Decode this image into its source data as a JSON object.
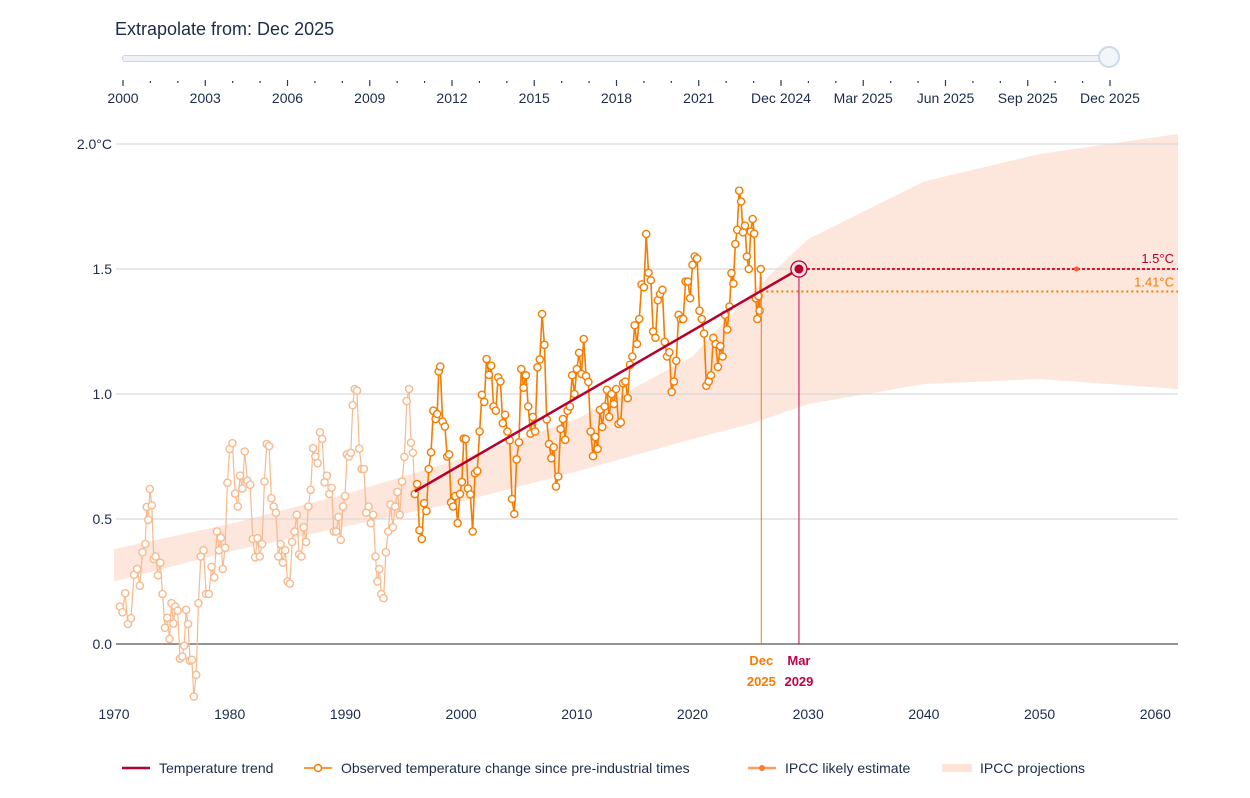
{
  "slider": {
    "title": "Extrapolate from: Dec 2025",
    "selected": "Dec 2025",
    "labels": [
      "2000",
      "2003",
      "2006",
      "2009",
      "2012",
      "2015",
      "2018",
      "2021",
      "Dec 2024",
      "Mar 2025",
      "Jun 2025",
      "Sep 2025",
      "Dec 2025"
    ]
  },
  "colors": {
    "trend": "#b5002e",
    "observed_recent": "#f57c00",
    "observed_past": "#f8b98d",
    "ipcc_estimate": "#ff7a33",
    "ipcc_band": "#fde3d8",
    "marker_dec2025": "#f57c00",
    "marker_mar2029": "#c2004a",
    "text": "#1d2c4c",
    "grid": "#d9d9d9"
  },
  "chart_data": {
    "type": "line",
    "title": "",
    "xlabel": "",
    "ylabel": "",
    "xlim": [
      1970,
      2062
    ],
    "ylim": [
      -0.25,
      2.0
    ],
    "x_ticks": [
      "1970",
      "1980",
      "1990",
      "2000",
      "2010",
      "2020",
      "2030",
      "2040",
      "2050",
      "2060"
    ],
    "y_ticks": [
      {
        "value": 2.0,
        "label": "2.0°C"
      },
      {
        "value": 1.5,
        "label": "1.5"
      },
      {
        "value": 1.0,
        "label": "1.0"
      },
      {
        "value": 0.5,
        "label": "0.5"
      },
      {
        "value": 0.0,
        "label": "0.0"
      }
    ],
    "grid": true,
    "legend_position": "bottom",
    "series": [
      {
        "name": "Temperature trend",
        "kind": "line",
        "x": [
          1996.0,
          2029.2
        ],
        "y": [
          0.61,
          1.5
        ]
      },
      {
        "name": "Observed temperature change since pre-industrial times",
        "kind": "line-markers",
        "highlight_from": 1996.0,
        "yearly_anomalies": [
          {
            "x": 1970.5,
            "y": 0.15
          },
          {
            "x": 1971.2,
            "y": 0.08
          },
          {
            "x": 1972.0,
            "y": 0.3
          },
          {
            "x": 1972.7,
            "y": 0.4
          },
          {
            "x": 1973.1,
            "y": 0.62
          },
          {
            "x": 1973.6,
            "y": 0.35
          },
          {
            "x": 1974.2,
            "y": 0.2
          },
          {
            "x": 1974.8,
            "y": 0.02
          },
          {
            "x": 1975.3,
            "y": 0.15
          },
          {
            "x": 1975.9,
            "y": -0.05
          },
          {
            "x": 1976.4,
            "y": 0.08
          },
          {
            "x": 1976.9,
            "y": -0.21
          },
          {
            "x": 1977.5,
            "y": 0.35
          },
          {
            "x": 1978.2,
            "y": 0.2
          },
          {
            "x": 1978.9,
            "y": 0.45
          },
          {
            "x": 1979.4,
            "y": 0.3
          },
          {
            "x": 1980.0,
            "y": 0.78
          },
          {
            "x": 1980.7,
            "y": 0.55
          },
          {
            "x": 1981.3,
            "y": 0.77
          },
          {
            "x": 1982.0,
            "y": 0.42
          },
          {
            "x": 1982.6,
            "y": 0.35
          },
          {
            "x": 1983.2,
            "y": 0.8
          },
          {
            "x": 1983.8,
            "y": 0.55
          },
          {
            "x": 1984.4,
            "y": 0.4
          },
          {
            "x": 1985.0,
            "y": 0.25
          },
          {
            "x": 1985.6,
            "y": 0.45
          },
          {
            "x": 1986.2,
            "y": 0.35
          },
          {
            "x": 1986.8,
            "y": 0.55
          },
          {
            "x": 1987.4,
            "y": 0.75
          },
          {
            "x": 1988.0,
            "y": 0.82
          },
          {
            "x": 1988.6,
            "y": 0.6
          },
          {
            "x": 1989.2,
            "y": 0.45
          },
          {
            "x": 1989.8,
            "y": 0.55
          },
          {
            "x": 1990.3,
            "y": 0.75
          },
          {
            "x": 1990.8,
            "y": 1.02
          },
          {
            "x": 1991.4,
            "y": 0.7
          },
          {
            "x": 1992.0,
            "y": 0.55
          },
          {
            "x": 1992.6,
            "y": 0.35
          },
          {
            "x": 1993.1,
            "y": 0.2
          },
          {
            "x": 1993.7,
            "y": 0.45
          },
          {
            "x": 1994.3,
            "y": 0.55
          },
          {
            "x": 1994.9,
            "y": 0.65
          },
          {
            "x": 1995.5,
            "y": 1.02
          },
          {
            "x": 1996.0,
            "y": 0.6
          },
          {
            "x": 1996.6,
            "y": 0.42
          },
          {
            "x": 1997.2,
            "y": 0.7
          },
          {
            "x": 1997.8,
            "y": 0.9
          },
          {
            "x": 1998.2,
            "y": 1.11
          },
          {
            "x": 1998.8,
            "y": 0.75
          },
          {
            "x": 1999.3,
            "y": 0.55
          },
          {
            "x": 1999.9,
            "y": 0.6
          },
          {
            "x": 2000.4,
            "y": 0.82
          },
          {
            "x": 2001.0,
            "y": 0.45
          },
          {
            "x": 2001.6,
            "y": 0.85
          },
          {
            "x": 2002.2,
            "y": 1.14
          },
          {
            "x": 2002.8,
            "y": 0.95
          },
          {
            "x": 2003.4,
            "y": 1.05
          },
          {
            "x": 2004.0,
            "y": 0.85
          },
          {
            "x": 2004.6,
            "y": 0.52
          },
          {
            "x": 2005.2,
            "y": 1.1
          },
          {
            "x": 2005.8,
            "y": 0.95
          },
          {
            "x": 2006.4,
            "y": 0.85
          },
          {
            "x": 2007.0,
            "y": 1.32
          },
          {
            "x": 2007.6,
            "y": 0.8
          },
          {
            "x": 2008.2,
            "y": 0.63
          },
          {
            "x": 2008.8,
            "y": 0.9
          },
          {
            "x": 2009.4,
            "y": 0.95
          },
          {
            "x": 2010.0,
            "y": 1.1
          },
          {
            "x": 2010.6,
            "y": 1.22
          },
          {
            "x": 2011.2,
            "y": 0.85
          },
          {
            "x": 2011.8,
            "y": 0.78
          },
          {
            "x": 2012.4,
            "y": 0.95
          },
          {
            "x": 2013.0,
            "y": 1.0
          },
          {
            "x": 2013.6,
            "y": 0.88
          },
          {
            "x": 2014.2,
            "y": 1.05
          },
          {
            "x": 2014.8,
            "y": 1.15
          },
          {
            "x": 2015.4,
            "y": 1.3
          },
          {
            "x": 2016.0,
            "y": 1.64
          },
          {
            "x": 2016.6,
            "y": 1.25
          },
          {
            "x": 2017.2,
            "y": 1.4
          },
          {
            "x": 2017.8,
            "y": 1.15
          },
          {
            "x": 2018.4,
            "y": 1.05
          },
          {
            "x": 2019.0,
            "y": 1.3
          },
          {
            "x": 2019.6,
            "y": 1.45
          },
          {
            "x": 2020.2,
            "y": 1.55
          },
          {
            "x": 2020.8,
            "y": 1.3
          },
          {
            "x": 2021.4,
            "y": 1.05
          },
          {
            "x": 2022.0,
            "y": 1.2
          },
          {
            "x": 2022.6,
            "y": 1.15
          },
          {
            "x": 2023.2,
            "y": 1.35
          },
          {
            "x": 2023.7,
            "y": 1.6
          },
          {
            "x": 2024.2,
            "y": 1.77
          },
          {
            "x": 2024.7,
            "y": 1.55
          },
          {
            "x": 2025.2,
            "y": 1.7
          },
          {
            "x": 2025.6,
            "y": 1.3
          },
          {
            "x": 2025.9,
            "y": 1.5
          }
        ]
      },
      {
        "name": "IPCC likely estimate",
        "kind": "dotted-line",
        "y": 1.5,
        "x": [
          2029.2,
          2062
        ]
      },
      {
        "name": "IPCC projections",
        "kind": "band",
        "x": [
          1970,
          1980,
          1990,
          2000,
          2010,
          2020,
          2025,
          2030,
          2040,
          2050,
          2062
        ],
        "lower": [
          0.25,
          0.37,
          0.47,
          0.57,
          0.69,
          0.82,
          0.88,
          0.96,
          1.04,
          1.06,
          1.02
        ],
        "upper": [
          0.38,
          0.48,
          0.6,
          0.74,
          0.9,
          1.15,
          1.4,
          1.62,
          1.85,
          1.96,
          2.04
        ]
      }
    ],
    "reference_lines": [
      {
        "label": "1.5°C",
        "y": 1.5,
        "color_key": "trend"
      },
      {
        "label": "1.41°C",
        "y": 1.41,
        "color_key": "observed_recent"
      }
    ],
    "markers": [
      {
        "label_top": "Dec",
        "label_bottom": "2025",
        "x": 2025.95,
        "color_key": "marker_dec2025"
      },
      {
        "label_top": "Mar",
        "label_bottom": "2029",
        "x": 2029.2,
        "color_key": "marker_mar2029"
      }
    ],
    "crossing_point": {
      "x": 2029.2,
      "y": 1.5
    }
  },
  "legend": {
    "items": [
      {
        "label": "Temperature trend"
      },
      {
        "label": "Observed temperature change since pre-industrial times"
      },
      {
        "label": "IPCC likely estimate"
      },
      {
        "label": "IPCC projections"
      }
    ]
  }
}
